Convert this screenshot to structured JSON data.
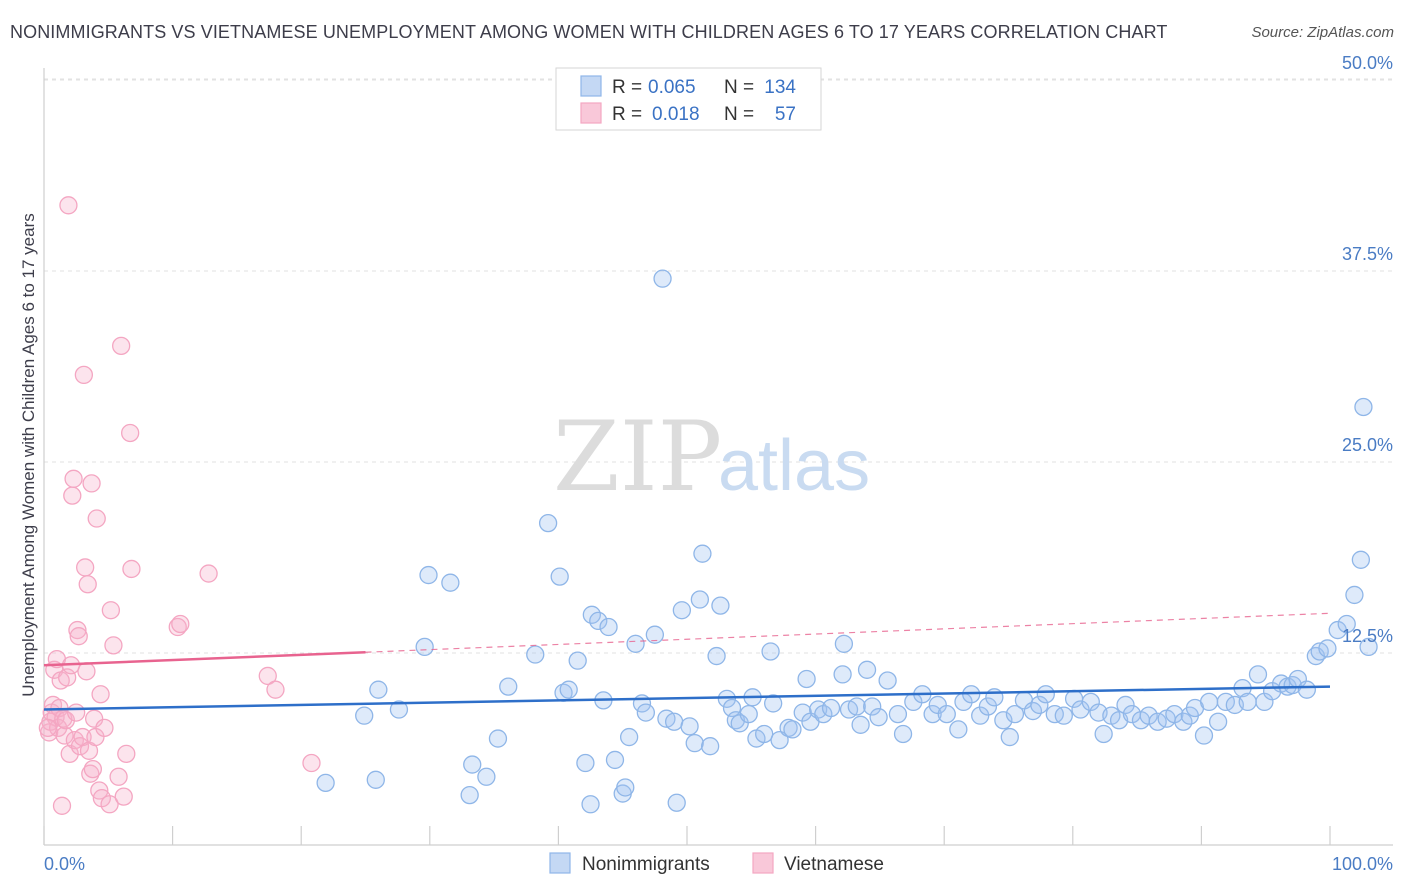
{
  "chart_data": {
    "type": "scatter",
    "title": "NONIMMIGRANTS VS VIETNAMESE UNEMPLOYMENT AMONG WOMEN WITH CHILDREN AGES 6 TO 17 YEARS CORRELATION CHART",
    "source": "Source: ZipAtlas.com",
    "ylabel": "Unemployment Among Women with Children Ages 6 to 17 years",
    "xlim": [
      0,
      100
    ],
    "ylim": [
      0,
      52
    ],
    "x_tick_labels": {
      "left": "0.0%",
      "right": "100.0%"
    },
    "y_ticks": [
      {
        "value": 12.5,
        "label": "12.5%"
      },
      {
        "value": 25.0,
        "label": "25.0%"
      },
      {
        "value": 37.5,
        "label": "37.5%"
      },
      {
        "value": 50.0,
        "label": "50.0%"
      }
    ],
    "watermark": {
      "part1": "ZIP",
      "part2": "atlas"
    },
    "legend": [
      {
        "r_label": "R =",
        "r_value": "0.065",
        "n_label": "N =",
        "n_value": "134"
      },
      {
        "r_label": "R =",
        "r_value": "0.018",
        "n_label": "N =",
        "n_value": "57"
      }
    ],
    "series": [
      {
        "name": "Nonimmigrants",
        "color": "#8fb6e8",
        "line_color": "#2e6fc9",
        "trend": {
          "x0": 0,
          "y0": 8.8,
          "x1": 100,
          "y1": 10.3
        },
        "points": [
          [
            21.9,
            4.0
          ],
          [
            24.9,
            8.4
          ],
          [
            25.8,
            4.2
          ],
          [
            26.0,
            10.1
          ],
          [
            27.6,
            8.8
          ],
          [
            29.6,
            12.9
          ],
          [
            29.9,
            17.6
          ],
          [
            31.6,
            17.1
          ],
          [
            33.1,
            3.2
          ],
          [
            33.3,
            5.2
          ],
          [
            34.4,
            4.4
          ],
          [
            35.3,
            6.9
          ],
          [
            36.1,
            10.3
          ],
          [
            38.2,
            12.4
          ],
          [
            39.2,
            21.0
          ],
          [
            40.1,
            17.5
          ],
          [
            40.4,
            9.9
          ],
          [
            40.8,
            10.1
          ],
          [
            41.5,
            12.0
          ],
          [
            42.1,
            5.3
          ],
          [
            42.5,
            2.6
          ],
          [
            42.6,
            15.0
          ],
          [
            43.1,
            14.6
          ],
          [
            43.5,
            9.4
          ],
          [
            43.9,
            14.2
          ],
          [
            44.4,
            5.5
          ],
          [
            45.0,
            3.3
          ],
          [
            45.2,
            3.7
          ],
          [
            45.5,
            7.0
          ],
          [
            46.0,
            13.1
          ],
          [
            46.5,
            9.2
          ],
          [
            46.8,
            8.6
          ],
          [
            47.5,
            13.7
          ],
          [
            48.1,
            37.0
          ],
          [
            48.4,
            8.2
          ],
          [
            49.0,
            8.0
          ],
          [
            49.2,
            2.7
          ],
          [
            49.6,
            15.3
          ],
          [
            50.2,
            7.7
          ],
          [
            50.6,
            6.6
          ],
          [
            51.0,
            16.0
          ],
          [
            51.2,
            19.0
          ],
          [
            51.8,
            6.4
          ],
          [
            52.3,
            12.3
          ],
          [
            52.6,
            15.6
          ],
          [
            53.1,
            9.5
          ],
          [
            53.5,
            8.9
          ],
          [
            53.8,
            8.1
          ],
          [
            54.1,
            7.9
          ],
          [
            54.8,
            8.5
          ],
          [
            55.1,
            9.6
          ],
          [
            55.4,
            6.9
          ],
          [
            56.0,
            7.2
          ],
          [
            56.5,
            12.6
          ],
          [
            56.7,
            9.2
          ],
          [
            57.2,
            6.8
          ],
          [
            57.9,
            7.6
          ],
          [
            58.2,
            7.5
          ],
          [
            59.0,
            8.6
          ],
          [
            59.3,
            10.8
          ],
          [
            59.6,
            8.0
          ],
          [
            60.2,
            8.8
          ],
          [
            60.6,
            8.5
          ],
          [
            61.2,
            8.9
          ],
          [
            62.1,
            11.1
          ],
          [
            62.2,
            13.1
          ],
          [
            62.6,
            8.8
          ],
          [
            63.2,
            9.0
          ],
          [
            63.5,
            7.8
          ],
          [
            64.0,
            11.4
          ],
          [
            64.4,
            9.0
          ],
          [
            64.9,
            8.3
          ],
          [
            65.6,
            10.7
          ],
          [
            66.4,
            8.5
          ],
          [
            66.8,
            7.2
          ],
          [
            67.6,
            9.3
          ],
          [
            68.3,
            9.8
          ],
          [
            69.1,
            8.5
          ],
          [
            69.5,
            9.1
          ],
          [
            70.2,
            8.5
          ],
          [
            71.1,
            7.5
          ],
          [
            71.5,
            9.3
          ],
          [
            72.1,
            9.8
          ],
          [
            72.8,
            8.4
          ],
          [
            73.4,
            9.0
          ],
          [
            73.9,
            9.6
          ],
          [
            74.6,
            8.1
          ],
          [
            75.1,
            7.0
          ],
          [
            75.5,
            8.5
          ],
          [
            76.2,
            9.4
          ],
          [
            76.9,
            8.7
          ],
          [
            77.4,
            9.1
          ],
          [
            77.9,
            9.8
          ],
          [
            78.6,
            8.5
          ],
          [
            79.3,
            8.4
          ],
          [
            80.1,
            9.5
          ],
          [
            80.6,
            8.8
          ],
          [
            81.4,
            9.3
          ],
          [
            82.0,
            8.6
          ],
          [
            82.4,
            7.2
          ],
          [
            83.0,
            8.4
          ],
          [
            83.6,
            8.1
          ],
          [
            84.1,
            9.1
          ],
          [
            84.6,
            8.5
          ],
          [
            85.3,
            8.1
          ],
          [
            85.9,
            8.4
          ],
          [
            86.6,
            8.0
          ],
          [
            87.3,
            8.2
          ],
          [
            87.9,
            8.5
          ],
          [
            88.6,
            8.0
          ],
          [
            89.1,
            8.4
          ],
          [
            89.5,
            8.9
          ],
          [
            90.2,
            7.1
          ],
          [
            90.6,
            9.3
          ],
          [
            91.3,
            8.0
          ],
          [
            91.9,
            9.3
          ],
          [
            92.6,
            9.1
          ],
          [
            93.2,
            10.2
          ],
          [
            93.6,
            9.3
          ],
          [
            94.4,
            11.1
          ],
          [
            94.9,
            9.3
          ],
          [
            95.5,
            10.0
          ],
          [
            96.2,
            10.5
          ],
          [
            96.7,
            10.3
          ],
          [
            97.1,
            10.4
          ],
          [
            97.5,
            10.8
          ],
          [
            98.2,
            10.1
          ],
          [
            98.9,
            12.3
          ],
          [
            99.2,
            12.6
          ],
          [
            99.8,
            12.8
          ],
          [
            100.6,
            14.0
          ],
          [
            101.3,
            14.4
          ],
          [
            101.9,
            16.3
          ],
          [
            102.4,
            18.6
          ],
          [
            102.6,
            28.6
          ],
          [
            103.0,
            12.9
          ]
        ]
      },
      {
        "name": "Vietnamese",
        "color": "#f4a6c2",
        "line_color": "#e8638f",
        "trend": {
          "x0": 0,
          "y0": 11.7,
          "x1": 100,
          "y1": 15.1
        },
        "trend_solid_until_x": 25,
        "points": [
          [
            0.4,
            7.3
          ],
          [
            0.5,
            8.0
          ],
          [
            0.6,
            8.6
          ],
          [
            0.7,
            9.1
          ],
          [
            0.8,
            11.4
          ],
          [
            0.9,
            8.3
          ],
          [
            1.0,
            12.1
          ],
          [
            1.1,
            7.6
          ],
          [
            1.2,
            8.9
          ],
          [
            1.3,
            10.7
          ],
          [
            1.4,
            2.5
          ],
          [
            1.5,
            8.2
          ],
          [
            1.6,
            7.1
          ],
          [
            1.7,
            8.1
          ],
          [
            1.8,
            10.9
          ],
          [
            1.9,
            41.8
          ],
          [
            2.0,
            5.9
          ],
          [
            2.1,
            11.7
          ],
          [
            2.2,
            22.8
          ],
          [
            2.3,
            23.9
          ],
          [
            2.4,
            6.8
          ],
          [
            2.5,
            8.6
          ],
          [
            2.6,
            14.0
          ],
          [
            2.7,
            13.6
          ],
          [
            2.8,
            6.4
          ],
          [
            3.0,
            7.0
          ],
          [
            3.1,
            30.7
          ],
          [
            3.2,
            18.1
          ],
          [
            3.3,
            11.3
          ],
          [
            3.4,
            17.0
          ],
          [
            3.5,
            6.1
          ],
          [
            3.6,
            4.6
          ],
          [
            3.7,
            23.6
          ],
          [
            3.8,
            4.9
          ],
          [
            3.9,
            8.2
          ],
          [
            4.0,
            7.0
          ],
          [
            4.1,
            21.3
          ],
          [
            4.3,
            3.5
          ],
          [
            4.4,
            9.8
          ],
          [
            4.5,
            3.0
          ],
          [
            4.7,
            7.6
          ],
          [
            5.1,
            2.6
          ],
          [
            5.2,
            15.3
          ],
          [
            5.4,
            13.0
          ],
          [
            5.8,
            4.4
          ],
          [
            6.0,
            32.6
          ],
          [
            6.2,
            3.1
          ],
          [
            6.4,
            5.9
          ],
          [
            6.7,
            26.9
          ],
          [
            6.8,
            18.0
          ],
          [
            10.4,
            14.2
          ],
          [
            10.6,
            14.4
          ],
          [
            12.8,
            17.7
          ],
          [
            17.4,
            11.0
          ],
          [
            18.0,
            10.1
          ],
          [
            20.8,
            5.3
          ],
          [
            0.3,
            7.6
          ]
        ]
      }
    ]
  }
}
